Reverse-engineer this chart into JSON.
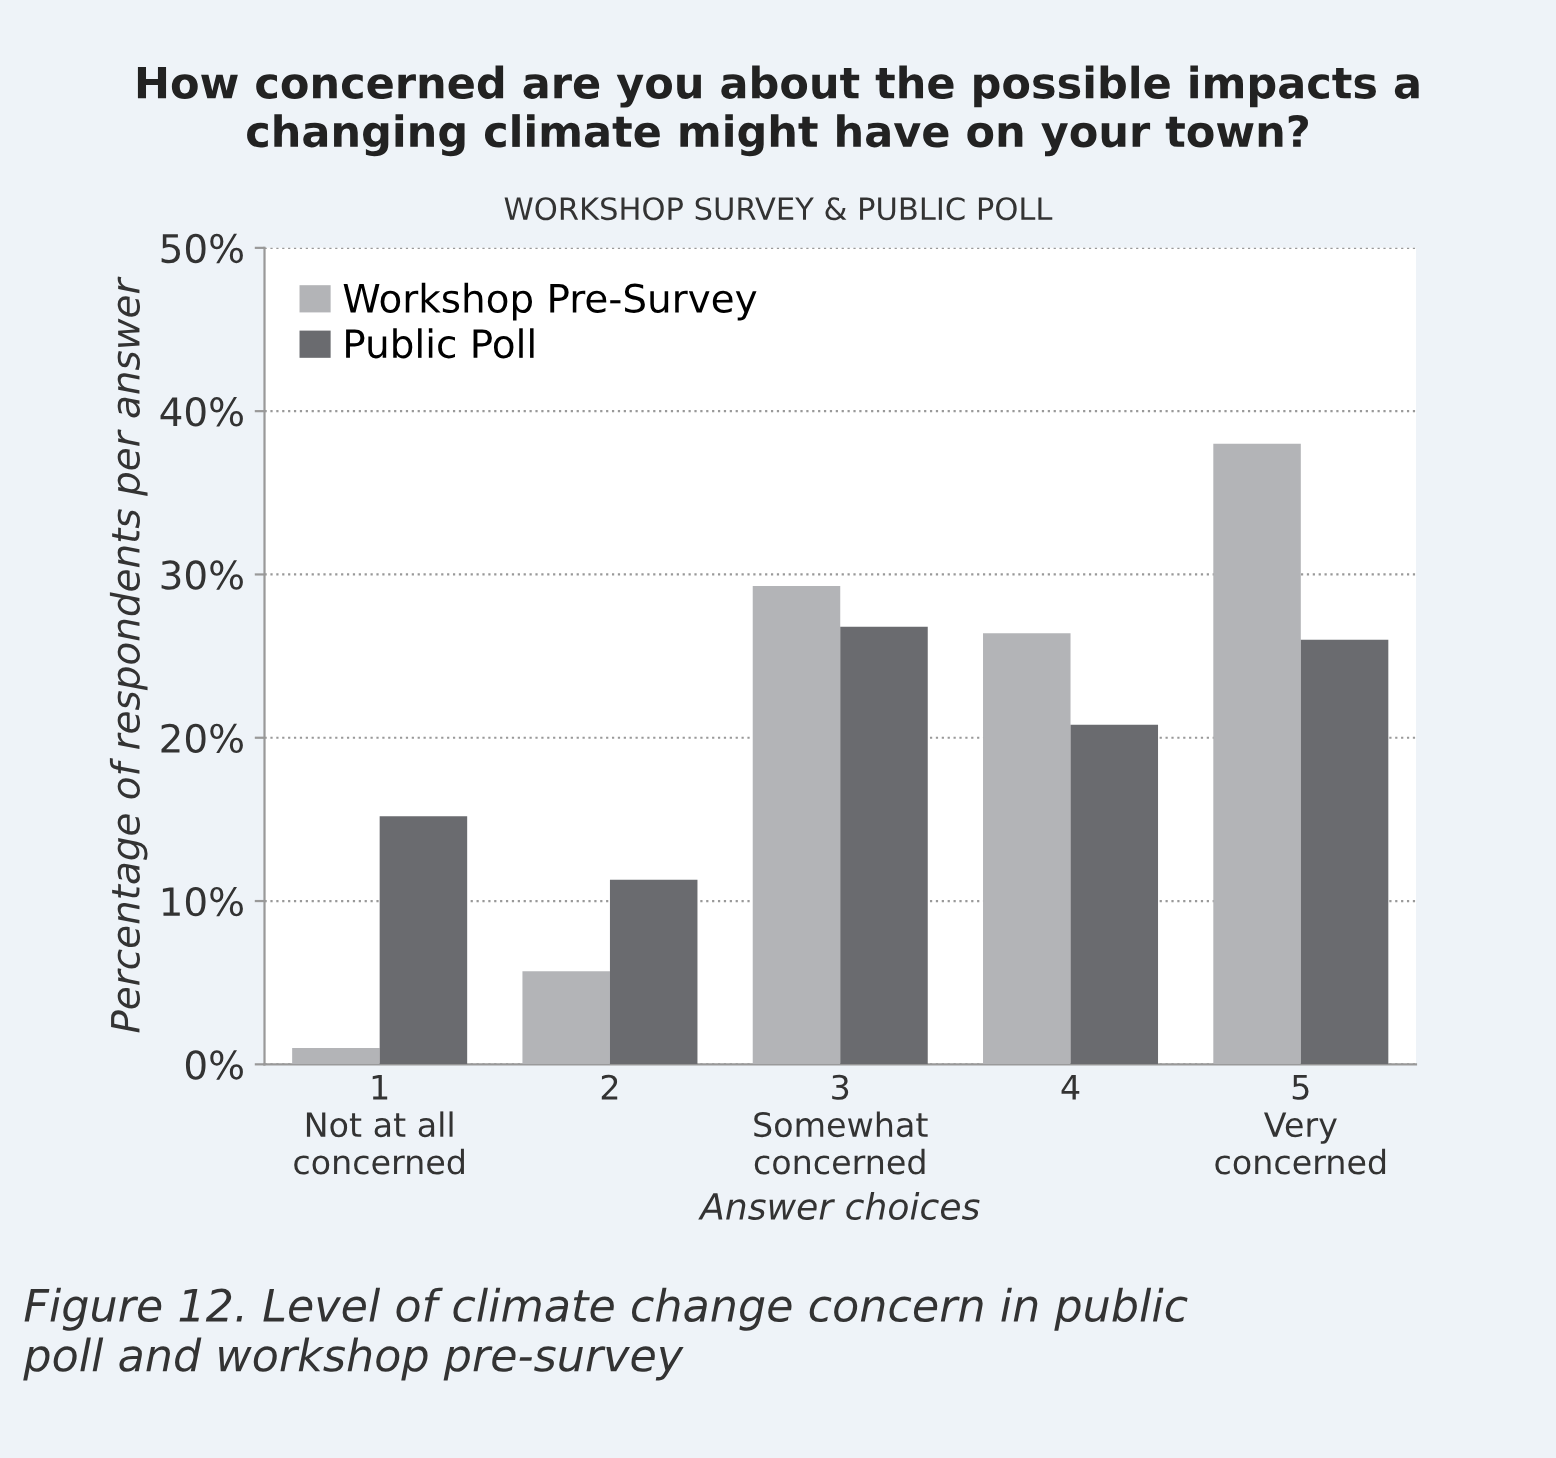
{
  "chart_data": {
    "type": "bar",
    "title": "How concerned are you about the possible impacts a\nchanging climate might have on your town?",
    "subtitle": "WORKSHOP SURVEY & PUBLIC POLL",
    "xlabel": "Answer choices",
    "ylabel": "Percentage of respondents per answer",
    "categories": [
      "1\nNot at all\nconcerned",
      "2",
      "3\nSomewhat\nconcerned",
      "4",
      "5\nVery\nconcerned"
    ],
    "series": [
      {
        "name": "Workshop Pre-Survey",
        "color": "#b3b4b7",
        "values": [
          1.0,
          5.7,
          29.3,
          26.4,
          38.0
        ]
      },
      {
        "name": "Public Poll",
        "color": "#6a6b6f",
        "values": [
          15.2,
          11.3,
          26.8,
          20.8,
          26.0
        ]
      }
    ],
    "ylim": [
      0,
      50
    ],
    "yticks": [
      {
        "value": 0,
        "label": "0%"
      },
      {
        "value": 10,
        "label": "10%"
      },
      {
        "value": 20,
        "label": "20%"
      },
      {
        "value": 30,
        "label": "30%"
      },
      {
        "value": 40,
        "label": "40%"
      },
      {
        "value": 50,
        "label": "50%"
      }
    ],
    "grid": "y",
    "legend": "top left",
    "annotations": [
      "Figure 12. Level of climate change concern in public\npoll and workshop pre-survey"
    ]
  }
}
